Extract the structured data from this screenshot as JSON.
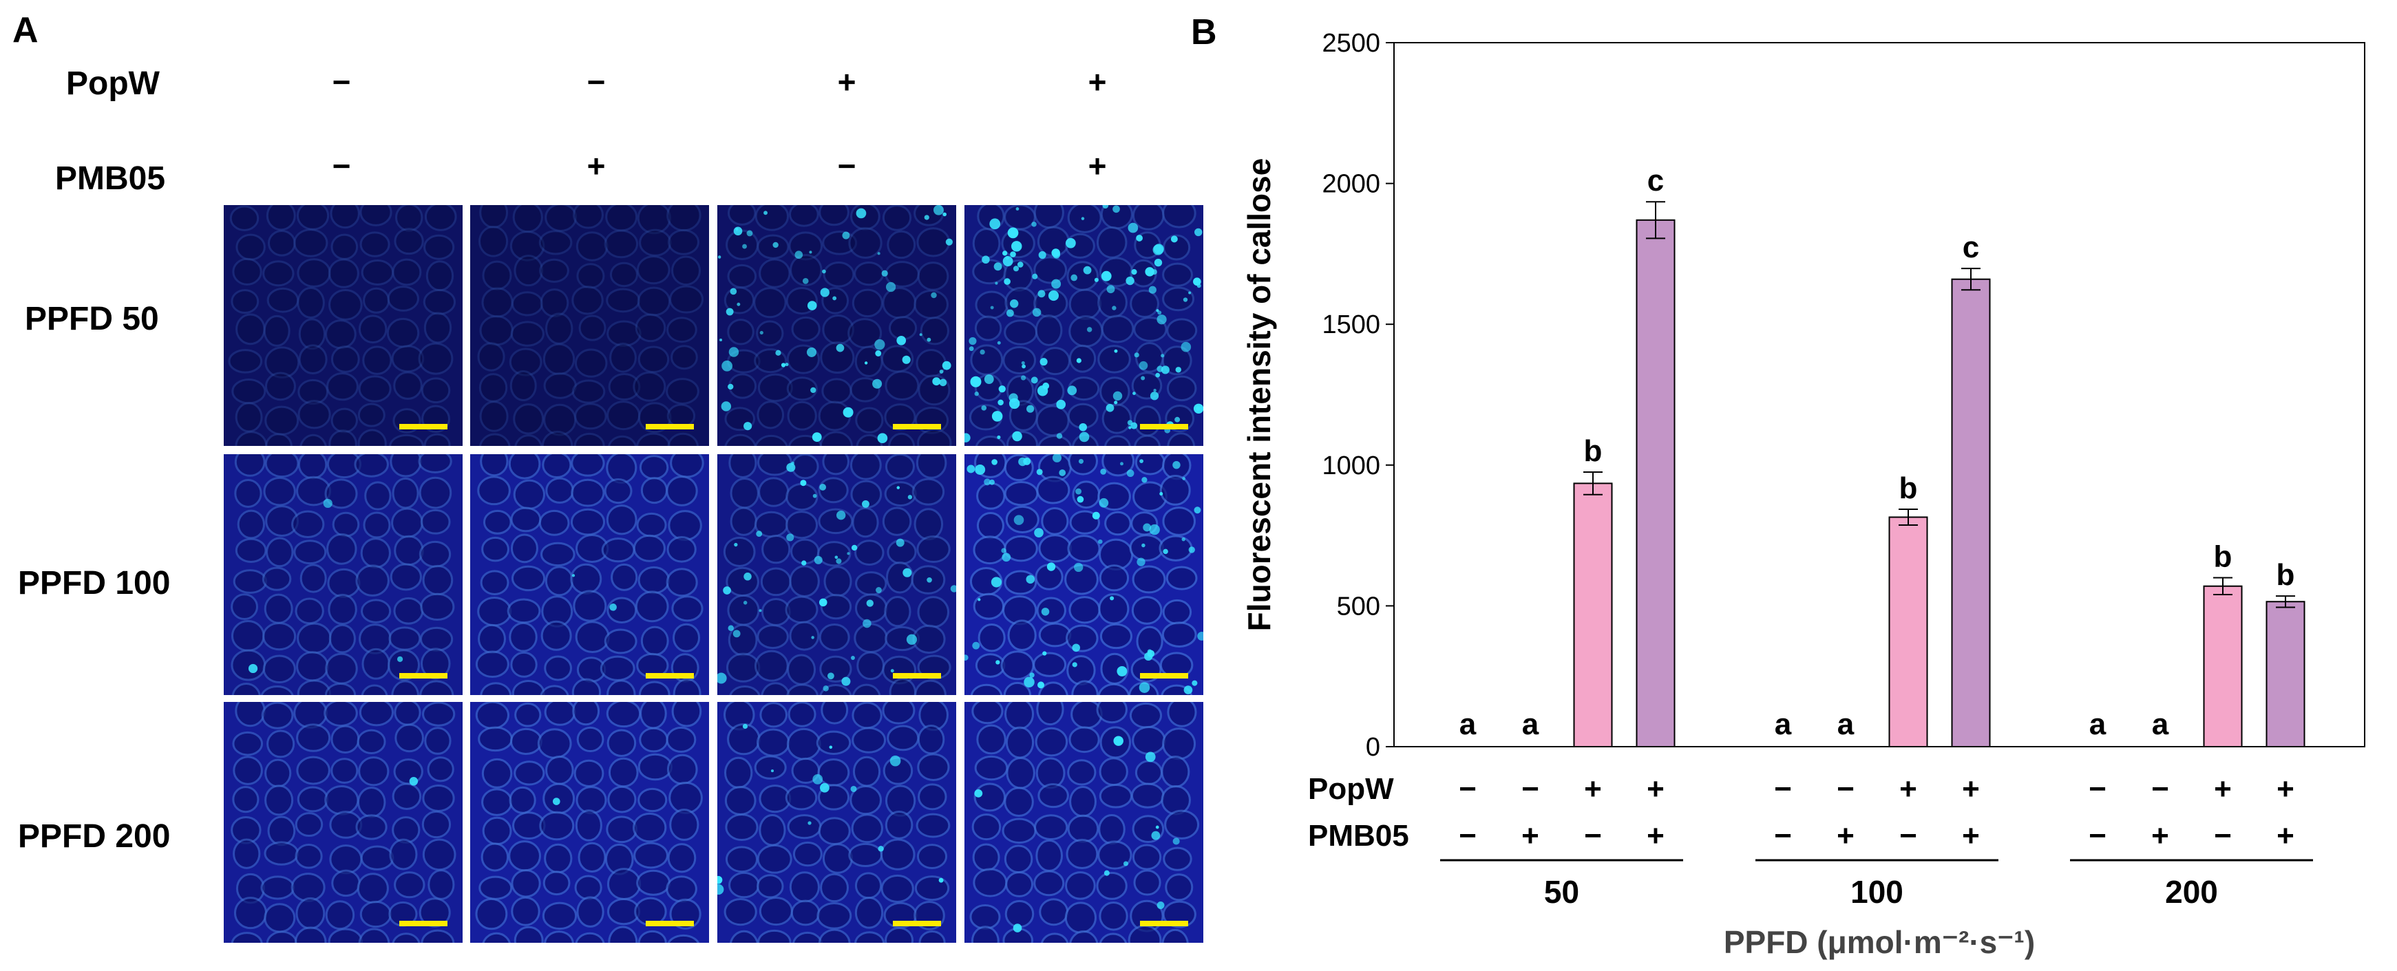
{
  "panelA": {
    "letter": "A",
    "labels": {
      "popw": "PopW",
      "pmb05": "PMB05"
    },
    "popw_signs": [
      "−",
      "−",
      "+",
      "+"
    ],
    "pmb05_signs": [
      "−",
      "+",
      "−",
      "+"
    ],
    "rows": [
      {
        "label": "PPFD 50",
        "tiles": [
          {
            "brightness": 0.25,
            "spots": 0
          },
          {
            "brightness": 0.22,
            "spots": 0
          },
          {
            "brightness": 0.28,
            "spots": 55
          },
          {
            "brightness": 0.45,
            "spots": 110
          }
        ]
      },
      {
        "label": "PPFD 100",
        "tiles": [
          {
            "brightness": 0.55,
            "spots": 3
          },
          {
            "brightness": 0.62,
            "spots": 2
          },
          {
            "brightness": 0.5,
            "spots": 40
          },
          {
            "brightness": 0.7,
            "spots": 60
          }
        ]
      },
      {
        "label": "PPFD 200",
        "tiles": [
          {
            "brightness": 0.6,
            "spots": 1
          },
          {
            "brightness": 0.65,
            "spots": 1
          },
          {
            "brightness": 0.62,
            "spots": 12
          },
          {
            "brightness": 0.66,
            "spots": 10
          }
        ]
      }
    ],
    "colors": {
      "cells": "#1a2fd8",
      "spot": "#39e6ff",
      "scalebar": "#ffeb00"
    }
  },
  "chart_data": {
    "letter": "B",
    "type": "bar",
    "ylabel": "Fluorescent intensity of callose",
    "xlabel": "PPFD (μmol·m⁻²·s⁻¹)",
    "ylim": [
      0,
      2500
    ],
    "yticks": [
      0,
      500,
      1000,
      1500,
      2000,
      2500
    ],
    "row_labels": {
      "popw": "PopW",
      "pmb05": "PMB05"
    },
    "groups": [
      {
        "name": "50",
        "bars": [
          {
            "popw": "−",
            "pmb05": "−",
            "value": 0,
            "error": 0,
            "letter": "a",
            "color": null
          },
          {
            "popw": "−",
            "pmb05": "+",
            "value": 0,
            "error": 0,
            "letter": "a",
            "color": null
          },
          {
            "popw": "+",
            "pmb05": "−",
            "value": 935,
            "error": 40,
            "letter": "b",
            "color": "#f4a6c9"
          },
          {
            "popw": "+",
            "pmb05": "+",
            "value": 1870,
            "error": 65,
            "letter": "c",
            "color": "#c395c7"
          }
        ]
      },
      {
        "name": "100",
        "bars": [
          {
            "popw": "−",
            "pmb05": "−",
            "value": 0,
            "error": 0,
            "letter": "a",
            "color": null
          },
          {
            "popw": "−",
            "pmb05": "+",
            "value": 0,
            "error": 0,
            "letter": "a",
            "color": null
          },
          {
            "popw": "+",
            "pmb05": "−",
            "value": 815,
            "error": 28,
            "letter": "b",
            "color": "#f4a6c9"
          },
          {
            "popw": "+",
            "pmb05": "+",
            "value": 1660,
            "error": 38,
            "letter": "c",
            "color": "#c395c7"
          }
        ]
      },
      {
        "name": "200",
        "bars": [
          {
            "popw": "−",
            "pmb05": "−",
            "value": 0,
            "error": 0,
            "letter": "a",
            "color": null
          },
          {
            "popw": "−",
            "pmb05": "+",
            "value": 0,
            "error": 0,
            "letter": "a",
            "color": null
          },
          {
            "popw": "+",
            "pmb05": "−",
            "value": 570,
            "error": 30,
            "letter": "b",
            "color": "#f4a6c9"
          },
          {
            "popw": "+",
            "pmb05": "+",
            "value": 515,
            "error": 20,
            "letter": "b",
            "color": "#c395c7"
          }
        ]
      }
    ],
    "grid": false,
    "legend": "none"
  }
}
